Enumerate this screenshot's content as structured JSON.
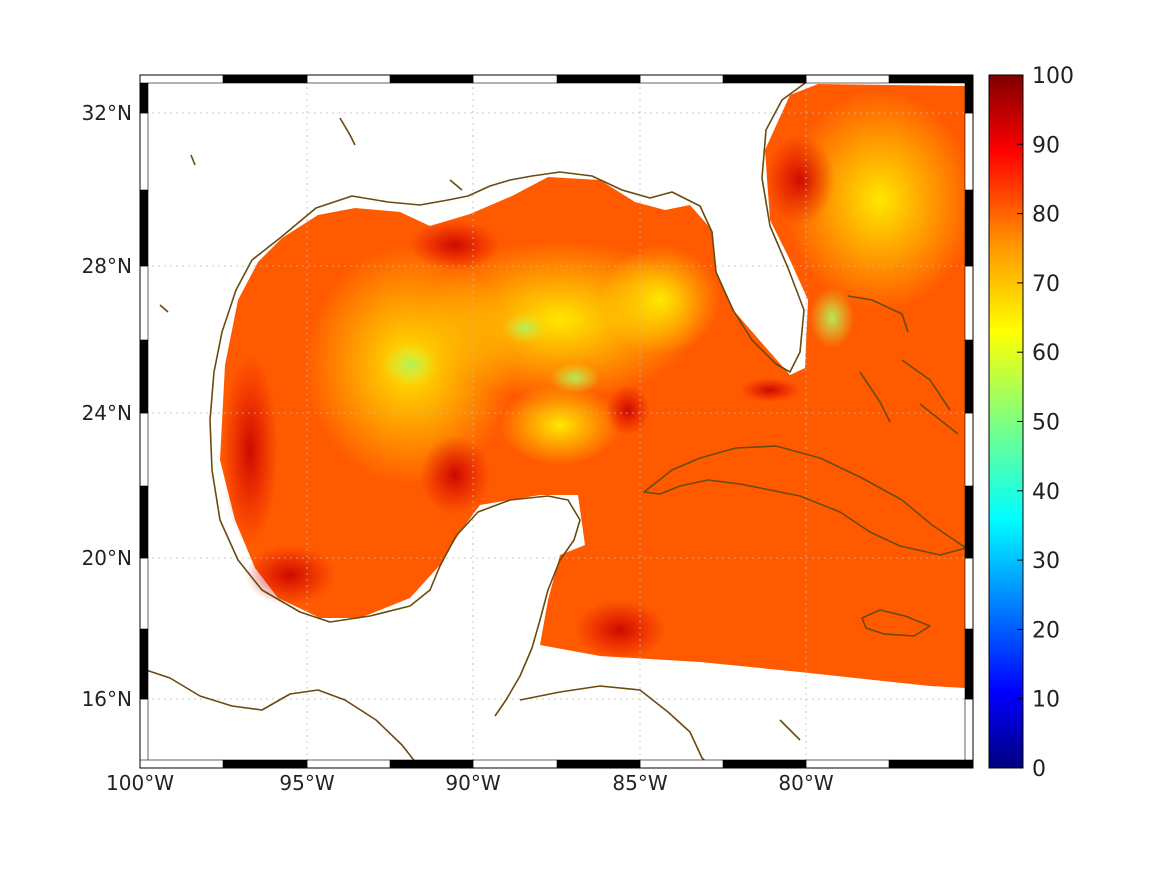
{
  "map": {
    "lat_labels": [
      "32°N",
      "28°N",
      "24°N",
      "20°N",
      "16°N"
    ],
    "lon_labels": [
      "100°W",
      "95°W",
      "90°W",
      "85°W",
      "80°W"
    ],
    "coast_color": "#6b4a10",
    "grid_color": "#bbbbbb",
    "frame_colors": [
      "#000000",
      "#ffffff"
    ]
  },
  "colorbar": {
    "ticks": [
      "0",
      "10",
      "20",
      "30",
      "40",
      "50",
      "60",
      "70",
      "80",
      "90",
      "100"
    ],
    "colormap": "jet",
    "colors": [
      "#00007f",
      "#0000ff",
      "#007fff",
      "#00ffff",
      "#7fff7f",
      "#ffff00",
      "#ff7f00",
      "#ff0000",
      "#7f0000"
    ]
  }
}
